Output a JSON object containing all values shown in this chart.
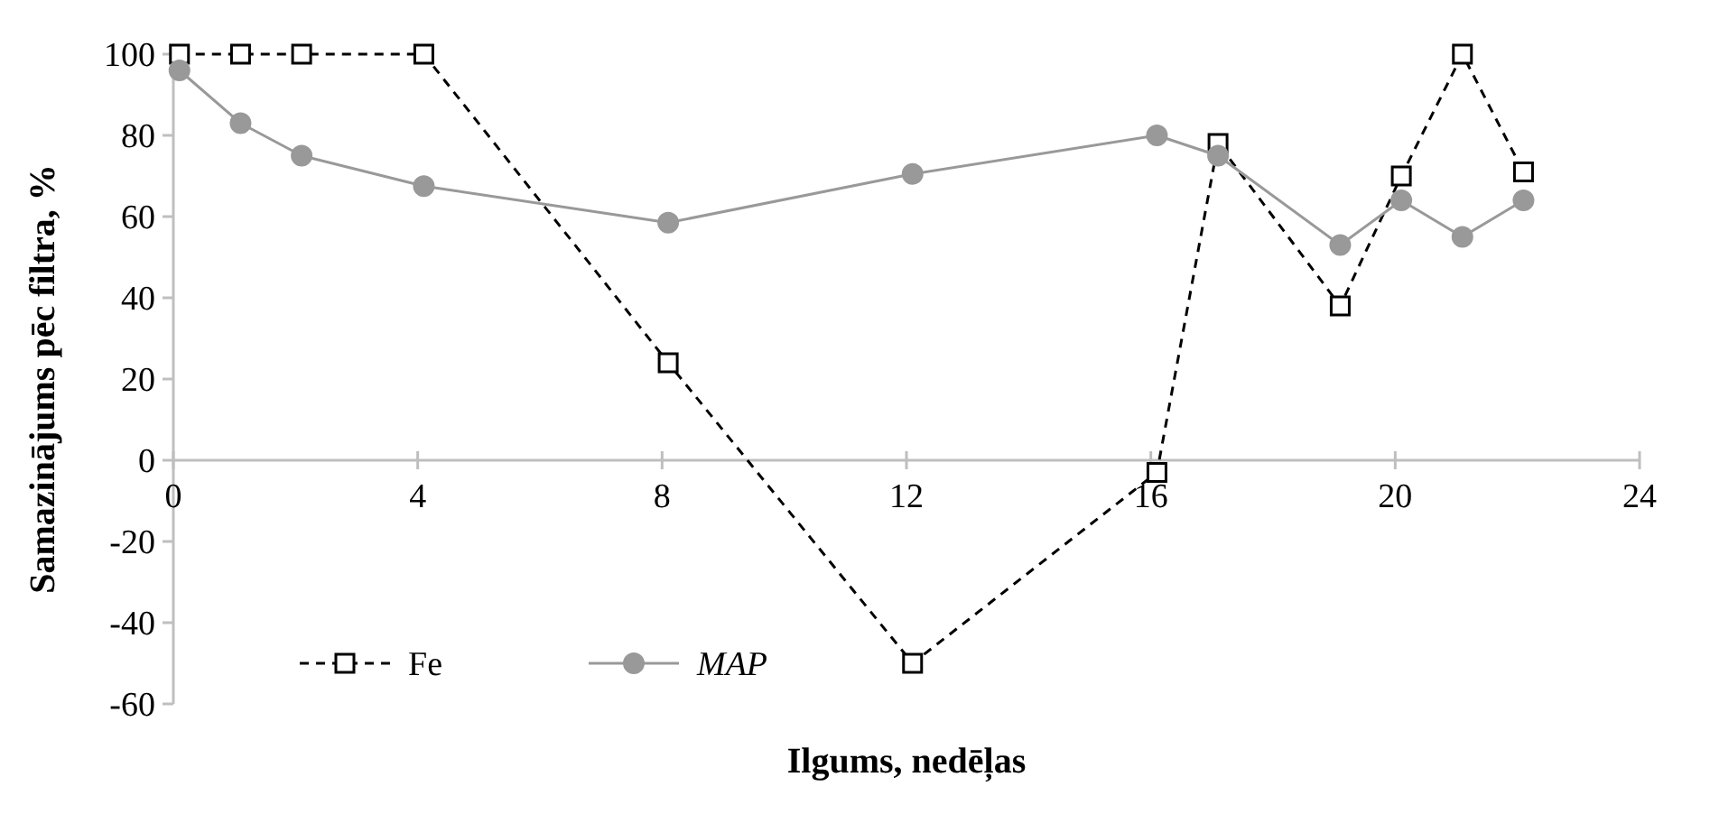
{
  "chart_data": {
    "type": "line",
    "xlabel": "Ilgums, nedēļas",
    "ylabel": "Samazinājums pēc filtra, %",
    "xlim": [
      0,
      24
    ],
    "xticks": [
      0,
      4,
      8,
      12,
      16,
      20,
      24
    ],
    "ylim": [
      -60,
      100
    ],
    "yticks": [
      -60,
      -40,
      -20,
      0,
      20,
      40,
      60,
      80,
      100
    ],
    "grid": false,
    "legend": "bottom left",
    "series": [
      {
        "name": "Fe",
        "color": "#000000",
        "line_style": "dashed",
        "marker": "square",
        "x": [
          0.1,
          1.1,
          2.1,
          4.1,
          8.1,
          12.1,
          16.1,
          17.1,
          19.1,
          20.1,
          21.1,
          22.1
        ],
        "values": [
          100,
          100,
          100,
          100,
          24,
          -50,
          -3,
          78,
          38,
          70,
          100,
          71
        ]
      },
      {
        "name": "MAP",
        "color": "#999999",
        "line_style": "solid",
        "marker": "circle",
        "x": [
          0.1,
          1.1,
          2.1,
          4.1,
          8.1,
          12.1,
          16.1,
          17.1,
          19.1,
          20.1,
          21.1,
          22.1
        ],
        "values": [
          96,
          83,
          75,
          67.5,
          58.5,
          70.5,
          80,
          75,
          53,
          64,
          55,
          64
        ]
      }
    ]
  }
}
